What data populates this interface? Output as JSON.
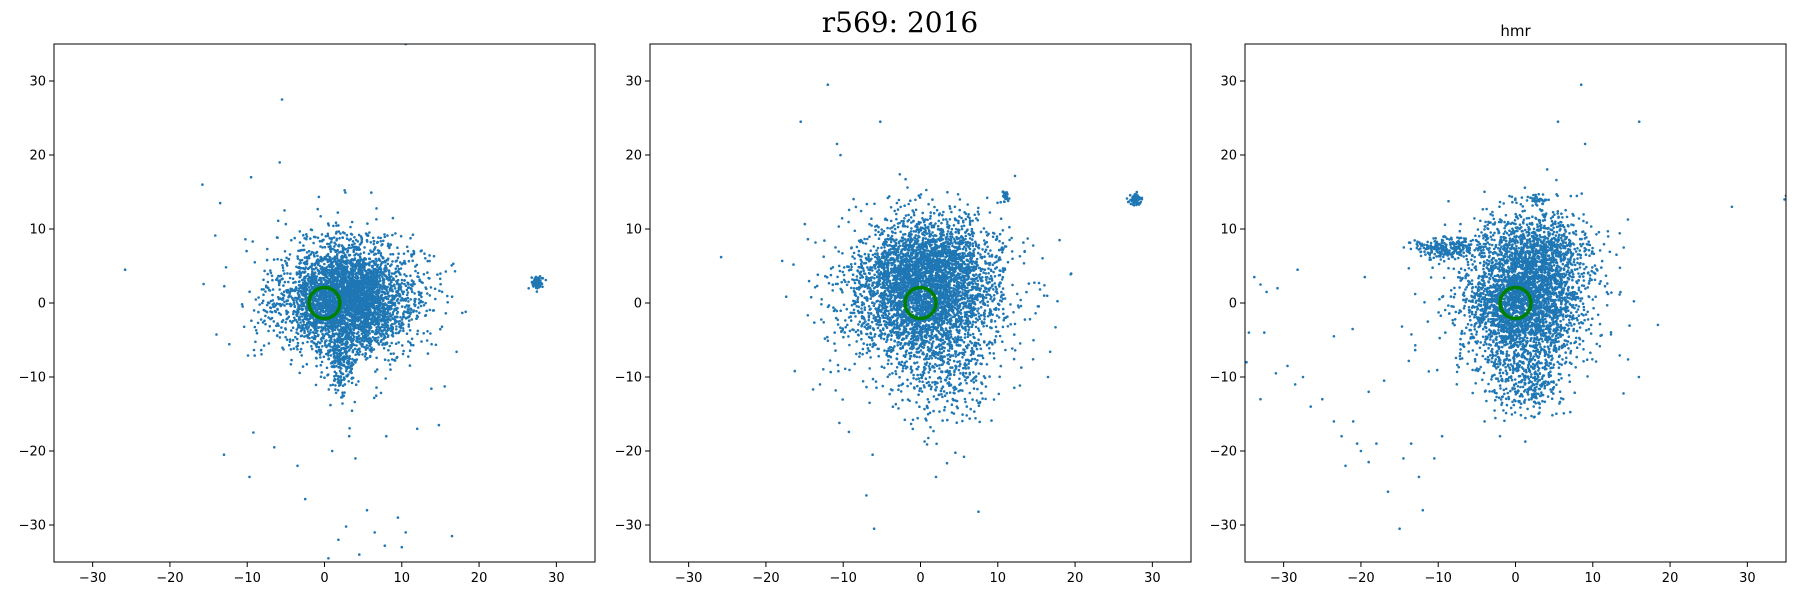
{
  "suptitle": "r569: 2016",
  "colors": {
    "points": "#1f77b4",
    "circle": "#008000",
    "axes": "#000000"
  },
  "chart_data": [
    {
      "type": "scatter",
      "title": "",
      "xlabel": "",
      "ylabel": "",
      "xlim": [
        -35,
        35
      ],
      "ylim": [
        -35,
        35
      ],
      "xticks": [
        -30,
        -20,
        -10,
        0,
        10,
        20,
        30
      ],
      "yticks": [
        -30,
        -20,
        -10,
        0,
        10,
        20,
        30
      ],
      "grid": false,
      "marker_circle": {
        "x": 0,
        "y": 0,
        "radius": 2
      },
      "clusters": [
        {
          "cx": 3,
          "cy": 0,
          "sx": 4.2,
          "sy": 3.2,
          "n": 3200
        },
        {
          "cx": 3,
          "cy": 3,
          "sx": 3.6,
          "sy": 3.2,
          "n": 900
        },
        {
          "cx": 2.2,
          "cy": -8,
          "sx": 0.9,
          "sy": 2,
          "n": 220
        },
        {
          "cx": 27.5,
          "cy": 2.7,
          "sx": 0.4,
          "sy": 0.4,
          "n": 80
        },
        {
          "cx": 2,
          "cy": 1,
          "sx": 6,
          "sy": 6,
          "n": 260
        }
      ],
      "points": [
        [
          -5.5,
          27.5
        ],
        [
          -25.8,
          4.5
        ],
        [
          -15.8,
          16
        ],
        [
          -9.5,
          17
        ],
        [
          -5.8,
          19
        ],
        [
          -13.5,
          13.5
        ],
        [
          10.5,
          35
        ],
        [
          -13,
          -20.5
        ],
        [
          -9.7,
          -23.5
        ],
        [
          -9.2,
          -17.5
        ],
        [
          -6.5,
          -19.5
        ],
        [
          -3.5,
          -22
        ],
        [
          -2.5,
          -26.5
        ],
        [
          0.5,
          -34.5
        ],
        [
          1.8,
          -32
        ],
        [
          2.8,
          -30.2
        ],
        [
          4.5,
          -34
        ],
        [
          5.5,
          -28
        ],
        [
          6.5,
          -31
        ],
        [
          7.8,
          -32.8
        ],
        [
          9.5,
          -29
        ],
        [
          10.5,
          -31
        ],
        [
          10,
          -33
        ],
        [
          16.5,
          -31.5
        ],
        [
          1,
          -20
        ],
        [
          3.2,
          -18
        ],
        [
          4,
          -21
        ],
        [
          8,
          -18
        ],
        [
          12,
          -17
        ],
        [
          14.8,
          -16.5
        ]
      ]
    },
    {
      "type": "scatter",
      "title": "",
      "xlabel": "",
      "ylabel": "",
      "xlim": [
        -35,
        35
      ],
      "ylim": [
        -35,
        35
      ],
      "xticks": [
        -30,
        -20,
        -10,
        0,
        10,
        20,
        30
      ],
      "yticks": [
        -30,
        -20,
        -10,
        0,
        10,
        20,
        30
      ],
      "grid": false,
      "marker_circle": {
        "x": 0,
        "y": 0,
        "radius": 2
      },
      "clusters": [
        {
          "cx": 0.5,
          "cy": 1,
          "sx": 4.5,
          "sy": 4.5,
          "n": 3400
        },
        {
          "cx": 1,
          "cy": 6,
          "sx": 4.5,
          "sy": 3,
          "n": 900
        },
        {
          "cx": 3,
          "cy": -10,
          "sx": 3,
          "sy": 3.5,
          "n": 260
        },
        {
          "cx": 27.8,
          "cy": 14,
          "sx": 0.4,
          "sy": 0.4,
          "n": 80
        },
        {
          "cx": 11,
          "cy": 14.5,
          "sx": 0.3,
          "sy": 0.4,
          "n": 25
        },
        {
          "cx": 1,
          "cy": 0,
          "sx": 7,
          "sy": 6.5,
          "n": 280
        }
      ],
      "points": [
        [
          -12,
          29.5
        ],
        [
          -15.5,
          24.5
        ],
        [
          -5.2,
          24.5
        ],
        [
          -10.8,
          21.5
        ],
        [
          -25.8,
          6.2
        ],
        [
          -10.5,
          -16.2
        ],
        [
          -6.2,
          -20.5
        ],
        [
          -7,
          -26
        ],
        [
          -6,
          -30.5
        ],
        [
          2,
          -23.5
        ],
        [
          7.5,
          -28.2
        ],
        [
          -13,
          -11
        ],
        [
          16.5,
          -10
        ],
        [
          18,
          8.5
        ],
        [
          16,
          1
        ]
      ]
    },
    {
      "type": "scatter",
      "title": "hmr",
      "xlabel": "",
      "ylabel": "",
      "xlim": [
        -35,
        35
      ],
      "ylim": [
        -35,
        35
      ],
      "xticks": [
        -30,
        -20,
        -10,
        0,
        10,
        20,
        30
      ],
      "yticks": [
        -30,
        -20,
        -10,
        0,
        10,
        20,
        30
      ],
      "grid": false,
      "marker_circle": {
        "x": 0,
        "y": 0,
        "radius": 2
      },
      "clusters": [
        {
          "cx": 1,
          "cy": 0,
          "sx": 3.6,
          "sy": 4.5,
          "n": 3000
        },
        {
          "cx": 3,
          "cy": 7,
          "sx": 3.2,
          "sy": 3,
          "n": 800
        },
        {
          "cx": -8.5,
          "cy": 7.5,
          "sx": 2.2,
          "sy": 0.7,
          "n": 260
        },
        {
          "cx": 1.5,
          "cy": -11,
          "sx": 2.4,
          "sy": 2.2,
          "n": 260
        },
        {
          "cx": 3,
          "cy": 14,
          "sx": 0.5,
          "sy": 0.5,
          "n": 30
        },
        {
          "cx": 1,
          "cy": 0,
          "sx": 6,
          "sy": 7,
          "n": 260
        }
      ],
      "points": [
        [
          8.5,
          29.5
        ],
        [
          5.5,
          24.5
        ],
        [
          16,
          24.5
        ],
        [
          9,
          21.5
        ],
        [
          -19.5,
          3.5
        ],
        [
          -28.2,
          4.5
        ],
        [
          -30.8,
          2
        ],
        [
          -32.2,
          1.5
        ],
        [
          -33,
          2.5
        ],
        [
          -33.8,
          3.5
        ],
        [
          -34.5,
          -4
        ],
        [
          -32.5,
          -4
        ],
        [
          -31,
          -9.5
        ],
        [
          -29.5,
          -8.5
        ],
        [
          -28.5,
          -11
        ],
        [
          -27.5,
          -10
        ],
        [
          -26.5,
          -14
        ],
        [
          -25,
          -13
        ],
        [
          -23.5,
          -16
        ],
        [
          -22.5,
          -18
        ],
        [
          -21,
          -16
        ],
        [
          -20,
          -20
        ],
        [
          -19,
          -21.5
        ],
        [
          -18,
          -19
        ],
        [
          -22,
          -22
        ],
        [
          -20.5,
          -19
        ],
        [
          -16.5,
          -25.5
        ],
        [
          -15,
          -30.5
        ],
        [
          -14.5,
          -21
        ],
        [
          -13.5,
          -19
        ],
        [
          -12,
          -28
        ],
        [
          -12.5,
          -23.5
        ],
        [
          -10.5,
          -21
        ],
        [
          -9.5,
          -18
        ],
        [
          -17,
          -10.5
        ],
        [
          -19,
          -12
        ],
        [
          -23.5,
          -4.5
        ],
        [
          -34.8,
          -8
        ],
        [
          -33,
          -13
        ],
        [
          28,
          13
        ],
        [
          35,
          14.5
        ],
        [
          34.8,
          14
        ],
        [
          -2,
          -18
        ],
        [
          -4,
          -16
        ],
        [
          12,
          9
        ],
        [
          14,
          7.5
        ]
      ]
    }
  ]
}
